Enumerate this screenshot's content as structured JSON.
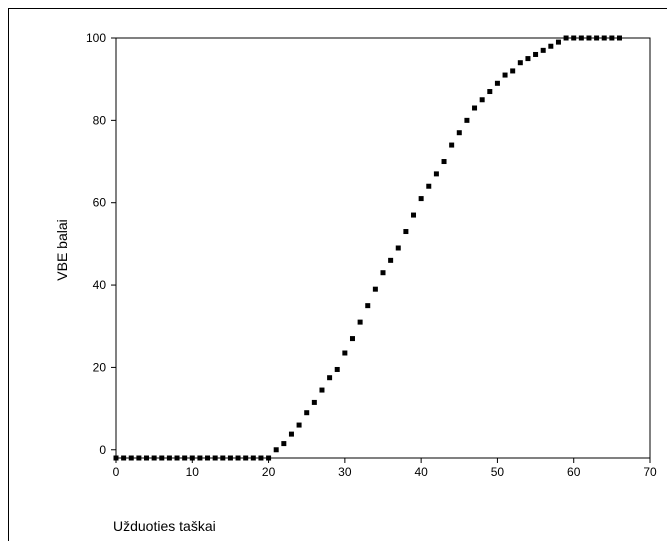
{
  "chart_data": {
    "type": "scatter",
    "xlabel": "Užduoties taškai",
    "ylabel": "VBE balai",
    "xlim": [
      0,
      70
    ],
    "ylim": [
      -2,
      100
    ],
    "xticks": [
      0,
      10,
      20,
      30,
      40,
      50,
      60,
      70
    ],
    "yticks": [
      0,
      20,
      40,
      60,
      80,
      100
    ],
    "grid": false,
    "marker": "square",
    "marker_color": "#000000",
    "series": [
      {
        "x": [
          0,
          1,
          2,
          3,
          4,
          5,
          6,
          7,
          8,
          9,
          10,
          11,
          12,
          13,
          14,
          15,
          16,
          17,
          18,
          19,
          20,
          21,
          22,
          23,
          24,
          25,
          26,
          27,
          28,
          29,
          30,
          31,
          32,
          33,
          34,
          35,
          36,
          37,
          38,
          39,
          40,
          41,
          42,
          43,
          44,
          45,
          46,
          47,
          48,
          49,
          50,
          51,
          52,
          53,
          54,
          55,
          56,
          57,
          58,
          59,
          60,
          61,
          62,
          63,
          64,
          65,
          66
        ],
        "y": [
          -2,
          -2,
          -2,
          -2,
          -2,
          -2,
          -2,
          -2,
          -2,
          -2,
          -2,
          -2,
          -2,
          -2,
          -2,
          -2,
          -2,
          -2,
          -2,
          -2,
          -2,
          0,
          1.5,
          3.8,
          6,
          9,
          11.5,
          14.5,
          17.5,
          19.5,
          23.5,
          27,
          31,
          35,
          39,
          43,
          46,
          49,
          53,
          57,
          61,
          64,
          67,
          70,
          74,
          77,
          80,
          83,
          85,
          87,
          89,
          91,
          92,
          94,
          95,
          96,
          97,
          98,
          99,
          100,
          100,
          100,
          100,
          100,
          100,
          100,
          100
        ]
      }
    ]
  }
}
